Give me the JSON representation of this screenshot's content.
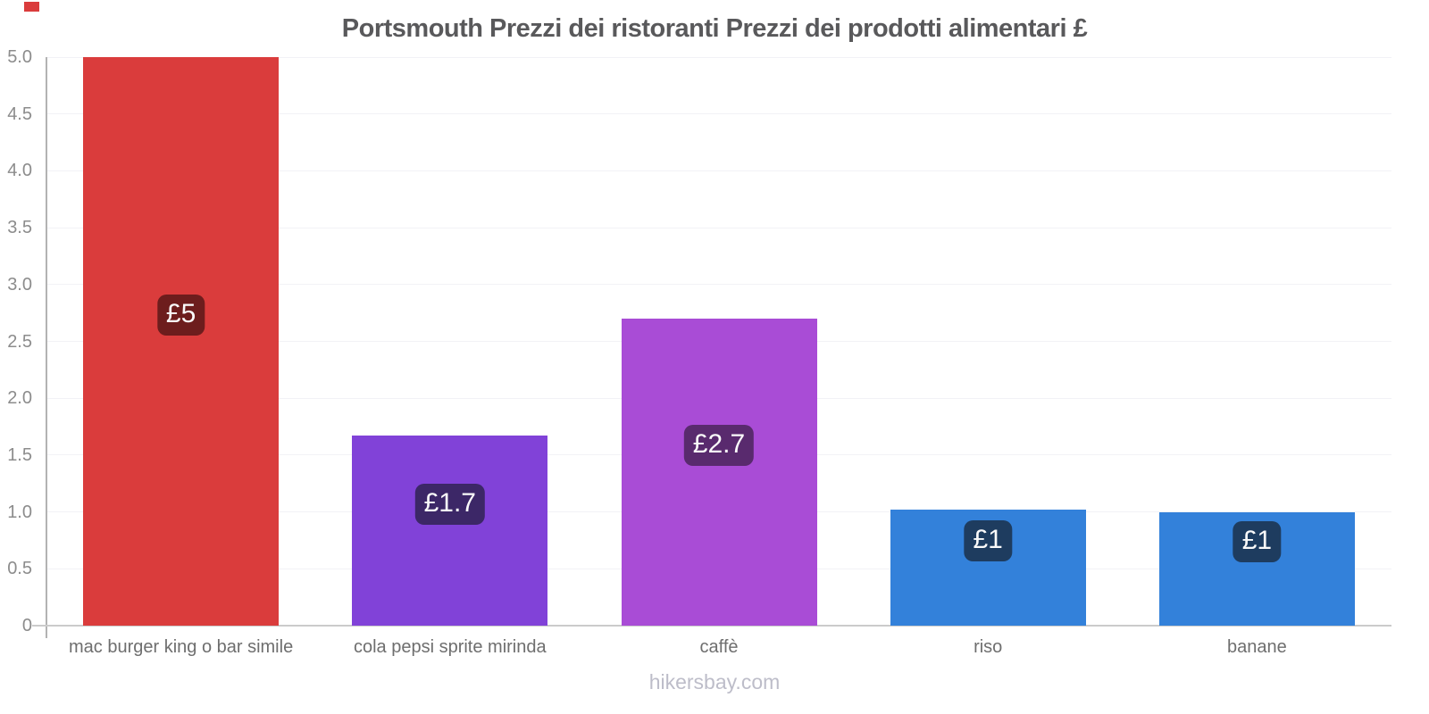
{
  "title": "Portsmouth Prezzi dei ristoranti Prezzi dei prodotti alimentari £",
  "footer": "hikersbay.com",
  "brand": {
    "accent_red": "#da3c3c"
  },
  "chart_data": {
    "type": "bar",
    "title": "Portsmouth Prezzi dei ristoranti Prezzi dei prodotti alimentari £",
    "xlabel": "",
    "ylabel": "",
    "currency": "£",
    "categories": [
      "mac burger king o bar simile",
      "cola pepsi sprite mirinda",
      "caffè",
      "riso",
      "banane"
    ],
    "values": [
      5.0,
      1.67,
      2.7,
      1.02,
      1.0
    ],
    "value_labels": [
      "£5",
      "£1.7",
      "£2.7",
      "£1",
      "£1"
    ],
    "bar_colors": [
      "#da3c3c",
      "#8142d8",
      "#a94cd6",
      "#3381da",
      "#3381da"
    ],
    "badge_colors": [
      "#6d1d1d",
      "#3c2767",
      "#592a6e",
      "#1e3c5f",
      "#1e3c5f"
    ],
    "ylim": [
      0,
      5
    ],
    "ytick_values": [
      5,
      4.5,
      4,
      3.5,
      3,
      2.5,
      2,
      1.5,
      1,
      0.5,
      0
    ],
    "ytick_labels": [
      "5.0",
      "4.5",
      "4.0",
      "3.5",
      "3.0",
      "2.5",
      "2.0",
      "1.5",
      "1.0",
      "0.5",
      "0"
    ],
    "grid": true,
    "legend": "none",
    "source_watermark": "hikersbay.com"
  }
}
